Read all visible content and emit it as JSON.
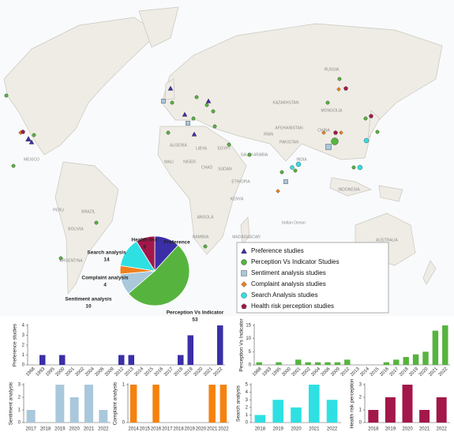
{
  "map": {
    "type": "map",
    "series": [
      {
        "name": "Preference studies",
        "color": "#3b2fa8",
        "marker": "triangle"
      },
      {
        "name": "Perception Vs Indicator Studies",
        "color": "#56b43e",
        "marker": "circle"
      },
      {
        "name": "Sentiment analysis studies",
        "color": "#a9c8dc",
        "marker": "square"
      },
      {
        "name": "Complaint analysis studies",
        "color": "#f07f1c",
        "marker": "diamond"
      },
      {
        "name": "Search Analysis studies",
        "color": "#2fe0e3",
        "marker": "circle"
      },
      {
        "name": "Health risk perception studies",
        "color": "#a3174a",
        "marker": "pentagon"
      }
    ],
    "labels": [
      "MEXICO",
      "PERU",
      "BRAZIL",
      "BOLIVIA",
      "ARGENTINA",
      "ALGERIA",
      "LIBYA",
      "EGYPT",
      "MALI",
      "NIGER",
      "CHAD",
      "SUDAN",
      "ETHIOPIA",
      "KENYA",
      "ANGOLA",
      "NAMIBIA",
      "MADAGASCAR",
      "SAUDI ARABIA",
      "IRAN",
      "AFGHANISTAN",
      "PAKISTAN",
      "INDIA",
      "KAZAKHSTAN",
      "MONGOLIA",
      "CHINA",
      "RUSSIA",
      "INDONESIA",
      "AUSTRALIA",
      "Indian Ocean"
    ]
  },
  "chart_data": [
    {
      "type": "pie",
      "categories": [
        "Preference",
        "Perception Vs Indicator",
        "Sentiment analysis",
        "Complaint analysis",
        "Search analysis",
        "Health risk"
      ],
      "values": [
        12,
        53,
        10,
        4,
        14,
        9
      ],
      "colors": [
        "#3b2fa8",
        "#56b43e",
        "#a9c8dc",
        "#f07f1c",
        "#2fe0e3",
        "#a3174a"
      ]
    },
    {
      "type": "bar",
      "ylabel": "Preference studies",
      "color": "#3b2fa8",
      "categories": [
        "1968",
        "1993",
        "1995",
        "2000",
        "2001",
        "2002",
        "2004",
        "2006",
        "2009",
        "2012",
        "2013",
        "2014",
        "2015",
        "2016",
        "2017",
        "2018",
        "2019",
        "2020",
        "2021",
        "2022"
      ],
      "values": [
        0,
        1,
        0,
        1,
        0,
        0,
        0,
        0,
        0,
        1,
        1,
        0,
        0,
        0,
        0,
        1,
        3,
        0,
        0,
        4
      ],
      "ylim": [
        0,
        4
      ],
      "yticks": [
        0,
        1,
        2,
        3,
        4
      ]
    },
    {
      "type": "bar",
      "ylabel": "Perception Vs Indicator",
      "color": "#56b43e",
      "categories": [
        "1968",
        "1993",
        "1995",
        "2000",
        "2001",
        "2002",
        "2004",
        "2006",
        "2009",
        "2012",
        "2013",
        "2014",
        "2015",
        "2016",
        "2017",
        "2018",
        "2019",
        "2020",
        "2021",
        "2022"
      ],
      "values": [
        1,
        0,
        1,
        0,
        2,
        1,
        1,
        1,
        1,
        2,
        0,
        0,
        0,
        1,
        2,
        3,
        4,
        5,
        13,
        15
      ],
      "ylim": [
        0,
        15
      ],
      "yticks": [
        0,
        5,
        10,
        15
      ]
    },
    {
      "type": "bar",
      "ylabel": "Sentiment analysis",
      "color": "#a9c8dc",
      "categories": [
        "2017",
        "2018",
        "2019",
        "2020",
        "2021",
        "2022"
      ],
      "values": [
        1,
        0,
        3,
        2,
        3,
        1
      ],
      "ylim": [
        0,
        3
      ],
      "yticks": [
        0,
        1,
        2,
        3
      ]
    },
    {
      "type": "bar",
      "ylabel": "Complaint analysis",
      "color": "#f5820f",
      "categories": [
        "2014",
        "2015",
        "2016",
        "2017",
        "2018",
        "2019",
        "2020",
        "2021",
        "2022"
      ],
      "values": [
        1,
        0,
        1,
        0,
        0,
        0,
        0,
        1,
        1
      ],
      "ylim": [
        0,
        1
      ],
      "yticks": [
        0,
        1
      ]
    },
    {
      "type": "bar",
      "ylabel": "Search analysis",
      "color": "#2fe0e3",
      "categories": [
        "2018",
        "2019",
        "2020",
        "2021",
        "2022"
      ],
      "values": [
        1,
        3,
        2,
        5,
        3
      ],
      "ylim": [
        0,
        5
      ],
      "yticks": [
        0,
        1,
        2,
        3,
        4,
        5
      ]
    },
    {
      "type": "bar",
      "ylabel": "Health risk perception",
      "color": "#a3174a",
      "categories": [
        "2018",
        "2019",
        "2020",
        "2021",
        "2022"
      ],
      "values": [
        1,
        2,
        3,
        1,
        2
      ],
      "ylim": [
        0,
        3
      ],
      "yticks": [
        0,
        1,
        2,
        3
      ]
    }
  ]
}
